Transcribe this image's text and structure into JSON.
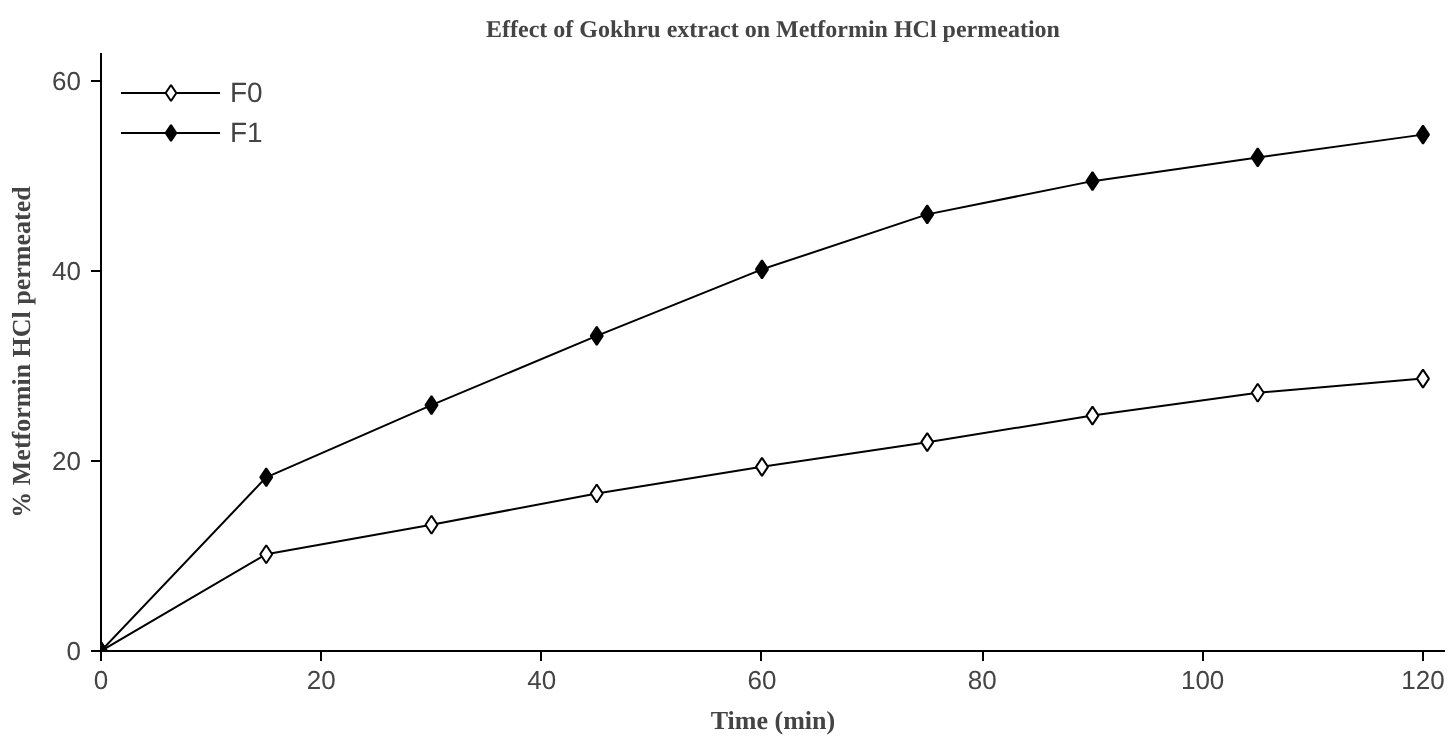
{
  "chart_data": {
    "type": "line",
    "title": "Effect of Gokhru extract on Metformin HCl permeation",
    "xlabel": "Time (min)",
    "ylabel": "% Metformin HCl permeated",
    "x": [
      0,
      15,
      30,
      45,
      60,
      75,
      90,
      105,
      120
    ],
    "series": [
      {
        "name": "F0",
        "color": "#000000",
        "marker": "diamond_open",
        "values": [
          0,
          10.2,
          13.3,
          16.6,
          19.4,
          22.0,
          24.8,
          27.2,
          28.7
        ]
      },
      {
        "name": "F1",
        "color": "#000000",
        "marker": "diamond",
        "values": [
          0,
          18.3,
          25.9,
          33.2,
          40.2,
          46.0,
          49.5,
          52.0,
          54.4
        ]
      }
    ],
    "xlim": [
      0,
      122
    ],
    "ylim": [
      0,
      63
    ],
    "xticks": [
      0,
      20,
      40,
      60,
      80,
      100,
      120
    ],
    "yticks": [
      0,
      20,
      40,
      60
    ],
    "grid": false,
    "legend": "top left",
    "line_style": "solid"
  }
}
